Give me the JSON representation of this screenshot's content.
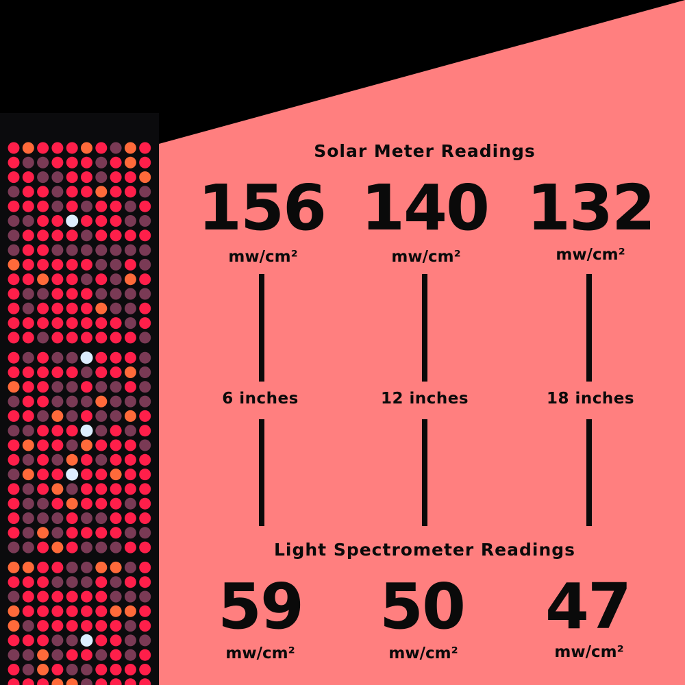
{
  "colors": {
    "background": "#000000",
    "panel_bg": "#FF7F7F",
    "text": "#0A0A0A",
    "led_red": "#FF1F4A",
    "led_dim": "#7A3A55",
    "led_blue": "#DDEEFF"
  },
  "image": {
    "subject": "red-light-therapy-led-panel"
  },
  "solar": {
    "title": "Solar Meter Readings",
    "readings": [
      {
        "value": "156",
        "unit": "mw/cm²"
      },
      {
        "value": "140",
        "unit": "mw/cm²"
      },
      {
        "value": "132",
        "unit": "mw/cm²"
      }
    ]
  },
  "distances": [
    "6 inches",
    "12 inches",
    "18 inches"
  ],
  "spectrometer": {
    "title": "Light Spectrometer Readings",
    "readings": [
      {
        "value": "59",
        "unit": "mw/cm²"
      },
      {
        "value": "50",
        "unit": "mw/cm²"
      },
      {
        "value": "47",
        "unit": "mw/cm²"
      }
    ]
  }
}
